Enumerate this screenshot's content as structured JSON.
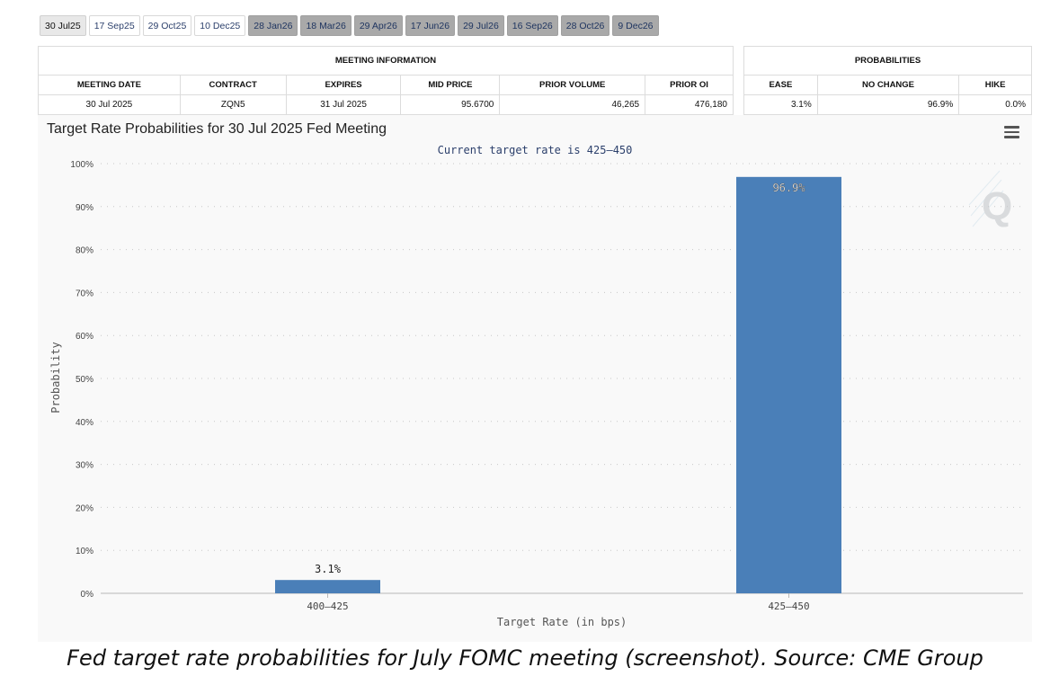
{
  "tabs": [
    {
      "label": "30 Jul25",
      "state": "active"
    },
    {
      "label": "17 Sep25",
      "state": "light"
    },
    {
      "label": "29 Oct25",
      "state": "light"
    },
    {
      "label": "10 Dec25",
      "state": "light"
    },
    {
      "label": "28 Jan26",
      "state": "dark"
    },
    {
      "label": "18 Mar26",
      "state": "dark"
    },
    {
      "label": "29 Apr26",
      "state": "dark"
    },
    {
      "label": "17 Jun26",
      "state": "dark"
    },
    {
      "label": "29 Jul26",
      "state": "dark"
    },
    {
      "label": "16 Sep26",
      "state": "dark"
    },
    {
      "label": "28 Oct26",
      "state": "dark"
    },
    {
      "label": "9 Dec26",
      "state": "dark"
    }
  ],
  "meeting_info": {
    "title": "MEETING INFORMATION",
    "headers": [
      "MEETING DATE",
      "CONTRACT",
      "EXPIRES",
      "MID PRICE",
      "PRIOR VOLUME",
      "PRIOR OI"
    ],
    "values": [
      "30 Jul 2025",
      "ZQN5",
      "31 Jul 2025",
      "95.6700",
      "46,265",
      "476,180"
    ]
  },
  "probabilities": {
    "title": "PROBABILITIES",
    "headers": [
      "EASE",
      "NO CHANGE",
      "HIKE"
    ],
    "values": [
      "3.1%",
      "96.9%",
      "0.0%"
    ]
  },
  "chart": {
    "title": "Target Rate Probabilities for 30 Jul 2025 Fed Meeting",
    "menu_icon": "hamburger-menu-icon",
    "watermark": "Q"
  },
  "chart_data": {
    "type": "bar",
    "title": "Target Rate Probabilities for 30 Jul 2025 Fed Meeting",
    "subtitle": "Current target rate is 425–450",
    "categories": [
      "400–425",
      "425–450"
    ],
    "values": [
      3.1,
      96.9
    ],
    "value_labels": [
      "3.1%",
      "96.9%"
    ],
    "xlabel": "Target Rate (in bps)",
    "ylabel": "Probability",
    "ylim": [
      0,
      100
    ],
    "yticks": [
      0,
      10,
      20,
      30,
      40,
      50,
      60,
      70,
      80,
      90,
      100
    ],
    "ytick_labels": [
      "0%",
      "10%",
      "20%",
      "30%",
      "40%",
      "50%",
      "60%",
      "70%",
      "80%",
      "90%",
      "100%"
    ],
    "grid": true,
    "bar_color": "#4a7fb8"
  },
  "caption": "Fed target rate probabilities for July FOMC meeting (screenshot). Source: CME Group"
}
